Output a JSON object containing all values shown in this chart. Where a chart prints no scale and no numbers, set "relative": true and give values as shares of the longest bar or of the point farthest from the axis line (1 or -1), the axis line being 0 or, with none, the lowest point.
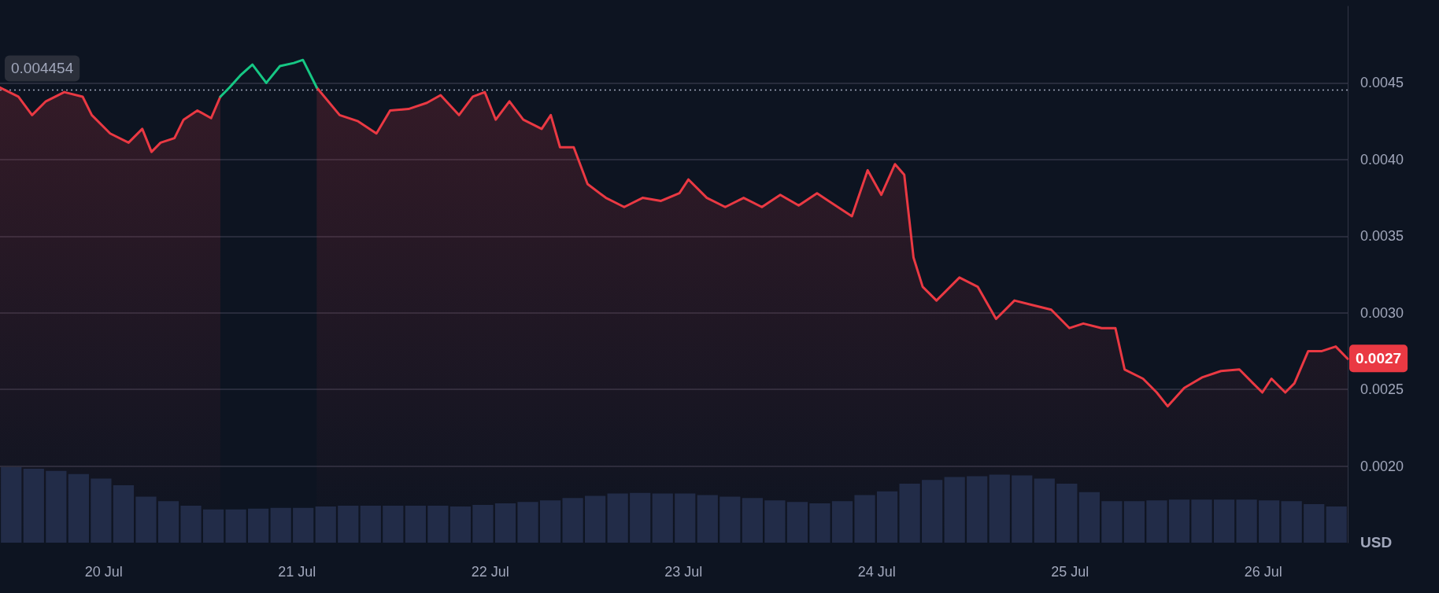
{
  "chart_data": [
    {
      "type": "line",
      "ylabel": "USD",
      "grid": "y",
      "marker": "none",
      "line_style": "solid",
      "x": [
        "--07-19T11:07",
        "--07-19T13:24",
        "--07-19T15:06",
        "--07-19T16:49",
        "--07-19T19:06",
        "--07-19T21:23",
        "--07-19T22:31",
        "--07-20T00:48",
        "--07-20T03:05",
        "--07-20T04:47",
        "--07-20T05:56",
        "--07-20T07:04",
        "--07-20T08:47",
        "--07-20T09:55",
        "--07-20T11:38",
        "--07-20T13:20",
        "--07-20T14:29",
        "--07-20T15:37",
        "--07-20T16:59",
        "--07-20T18:28",
        "--07-20T20:11",
        "--07-20T21:53",
        "--07-20T23:36",
        "--07-21T00:44",
        "--07-21T02:27",
        "--07-21T05:18",
        "--07-21T07:35",
        "--07-21T09:52",
        "--07-21T11:34",
        "--07-21T13:51",
        "--07-21T16:08",
        "--07-21T17:50",
        "--07-21T20:07",
        "--07-21T21:50",
        "--07-21T23:19",
        "--07-22T00:41",
        "--07-22T02:23",
        "--07-22T04:06",
        "--07-22T06:23",
        "--07-22T07:31",
        "--07-22T08:40",
        "--07-22T10:22",
        "--07-22T12:05",
        "--07-22T14:22",
        "--07-22T16:38",
        "--07-22T18:55",
        "--07-22T21:12",
        "--07-22T23:29",
        "--07-23T00:37",
        "--07-23T02:54",
        "--07-23T05:11",
        "--07-23T07:28",
        "--07-23T09:44",
        "--07-23T12:01",
        "--07-23T14:18",
        "--07-23T16:35",
        "--07-23T18:52",
        "--07-23T20:55",
        "--07-23T22:52",
        "--07-24T00:34",
        "--07-24T02:16",
        "--07-24T03:25",
        "--07-24T04:34",
        "--07-24T05:42",
        "--07-24T07:25",
        "--07-24T10:16",
        "--07-24T12:32",
        "--07-24T14:49",
        "--07-24T17:06",
        "--07-24T19:23",
        "--07-24T21:40",
        "--07-24T23:56",
        "--07-25T01:39",
        "--07-25T03:56",
        "--07-25T05:38",
        "--07-25T06:47",
        "--07-25T09:04",
        "--07-25T10:46",
        "--07-25T12:08",
        "--07-25T14:11",
        "--07-25T16:28",
        "--07-25T18:45",
        "--07-25T21:02",
        "--07-25T22:44",
        "--07-25T23:53",
        "--07-26T01:01",
        "--07-26T02:44",
        "--07-26T03:52",
        "--07-26T05:35",
        "--07-26T07:17",
        "--07-26T09:00",
        "--07-26T10:29"
      ],
      "series": [
        {
          "type": "area",
          "color": "#ea3943",
          "values": [
            0.00447,
            0.00441,
            0.00429,
            0.00438,
            0.00444,
            0.00441,
            0.00429,
            0.00417,
            0.00411,
            0.0042,
            0.00405,
            0.00411,
            0.00414,
            0.00426,
            0.00432,
            0.00427,
            0.00441,
            null,
            null,
            null,
            null,
            null,
            null,
            null,
            0.00447,
            0.00429,
            0.00425,
            0.00417,
            0.00432,
            0.00433,
            0.00437,
            0.00442,
            0.00429,
            0.00441,
            0.00444,
            0.00426,
            0.00438,
            0.00426,
            0.0042,
            0.00429,
            0.00408,
            0.00408,
            0.00384,
            0.00375,
            0.00369,
            0.00375,
            0.00373,
            0.00378,
            0.00387,
            0.00375,
            0.00369,
            0.00375,
            0.00369,
            0.00377,
            0.0037,
            0.00378,
            0.0037,
            0.00363,
            0.00393,
            0.00377,
            0.00397,
            0.0039,
            0.00336,
            0.00317,
            0.00308,
            0.00323,
            0.00317,
            0.00296,
            0.00308,
            0.00305,
            0.00302,
            0.0029,
            0.00293,
            0.0029,
            0.0029,
            0.00263,
            0.00257,
            0.00248,
            0.00239,
            0.00251,
            0.00258,
            0.00262,
            0.00263,
            0.00254,
            0.00248,
            0.00257,
            0.00248,
            0.00254,
            0.00275,
            0.00275,
            0.00278,
            0.0027
          ]
        },
        {
          "color": "#16c784",
          "values": [
            null,
            null,
            null,
            null,
            null,
            null,
            null,
            null,
            null,
            null,
            null,
            null,
            null,
            null,
            null,
            null,
            0.00441,
            0.00447,
            0.00455,
            0.00462,
            0.0045,
            0.00461,
            0.00463,
            0.00465,
            0.00447,
            null,
            null,
            null,
            null,
            null,
            null,
            null,
            null,
            null,
            null,
            null,
            null,
            null,
            null,
            null,
            null,
            null,
            null,
            null,
            null,
            null,
            null,
            null,
            null,
            null,
            null,
            null,
            null,
            null,
            null,
            null,
            null,
            null,
            null,
            null,
            null,
            null,
            null,
            null,
            null,
            null,
            null,
            null,
            null,
            null,
            null,
            null,
            null,
            null,
            null,
            null,
            null,
            null,
            null,
            null,
            null,
            null,
            null,
            null,
            null,
            null,
            null,
            null,
            null,
            null,
            null,
            null
          ]
        }
      ],
      "xlim": [
        "--07-19T11:07",
        "--07-26T10:29"
      ],
      "xticks": [
        {
          "value": "--07-20",
          "label": "20 Jul"
        },
        {
          "value": "--07-21",
          "label": "21 Jul"
        },
        {
          "value": "--07-22",
          "label": "22 Jul"
        },
        {
          "value": "--07-23",
          "label": "23 Jul"
        },
        {
          "value": "--07-24",
          "label": "24 Jul"
        },
        {
          "value": "--07-25",
          "label": "25 Jul"
        },
        {
          "value": "--07-26",
          "label": "26 Jul"
        }
      ],
      "ylim": [
        0.0015,
        0.005
      ],
      "yticks": [
        {
          "value": 0.002,
          "label": "0.0020"
        },
        {
          "value": 0.0025,
          "label": "0.0025"
        },
        {
          "value": 0.003,
          "label": "0.0030"
        },
        {
          "value": 0.0035,
          "label": "0.0035"
        },
        {
          "value": 0.004,
          "label": "0.0040"
        },
        {
          "value": 0.0045,
          "label": "0.0045"
        }
      ],
      "ref_lines": [
        {
          "axis": "y",
          "value": 0.004454,
          "label": "0.004454",
          "color": "#a1a7bb",
          "line_style": "dotted"
        }
      ],
      "annotations": [
        {
          "text": "0.0027",
          "x": "--07-26T10:29",
          "y": 0.0027
        }
      ]
    },
    {
      "type": "bar",
      "relative": true,
      "tick_labels": false,
      "color": "#222c48",
      "categories": [
        null,
        null,
        null,
        null,
        null,
        null,
        null,
        null,
        null,
        null,
        null,
        null,
        null,
        null,
        null,
        null,
        null,
        null,
        null,
        null,
        null,
        null,
        null,
        null,
        null,
        null,
        null,
        null,
        null,
        null,
        null,
        null,
        null,
        null,
        null,
        null,
        null,
        null,
        null,
        null,
        null,
        null,
        null,
        null,
        null,
        null,
        null,
        null,
        null,
        null,
        null,
        null,
        null,
        null,
        null,
        null,
        null,
        null,
        null,
        null
      ],
      "values": [
        1.0,
        0.98,
        0.95,
        0.91,
        0.85,
        0.76,
        0.61,
        0.55,
        0.49,
        0.44,
        0.44,
        0.45,
        0.46,
        0.46,
        0.48,
        0.49,
        0.49,
        0.49,
        0.49,
        0.49,
        0.48,
        0.5,
        0.52,
        0.54,
        0.56,
        0.59,
        0.62,
        0.65,
        0.66,
        0.65,
        0.65,
        0.63,
        0.61,
        0.59,
        0.56,
        0.54,
        0.52,
        0.55,
        0.63,
        0.68,
        0.78,
        0.83,
        0.87,
        0.88,
        0.9,
        0.89,
        0.85,
        0.78,
        0.67,
        0.55,
        0.55,
        0.56,
        0.57,
        0.57,
        0.57,
        0.57,
        0.56,
        0.55,
        0.51,
        0.48
      ]
    }
  ]
}
